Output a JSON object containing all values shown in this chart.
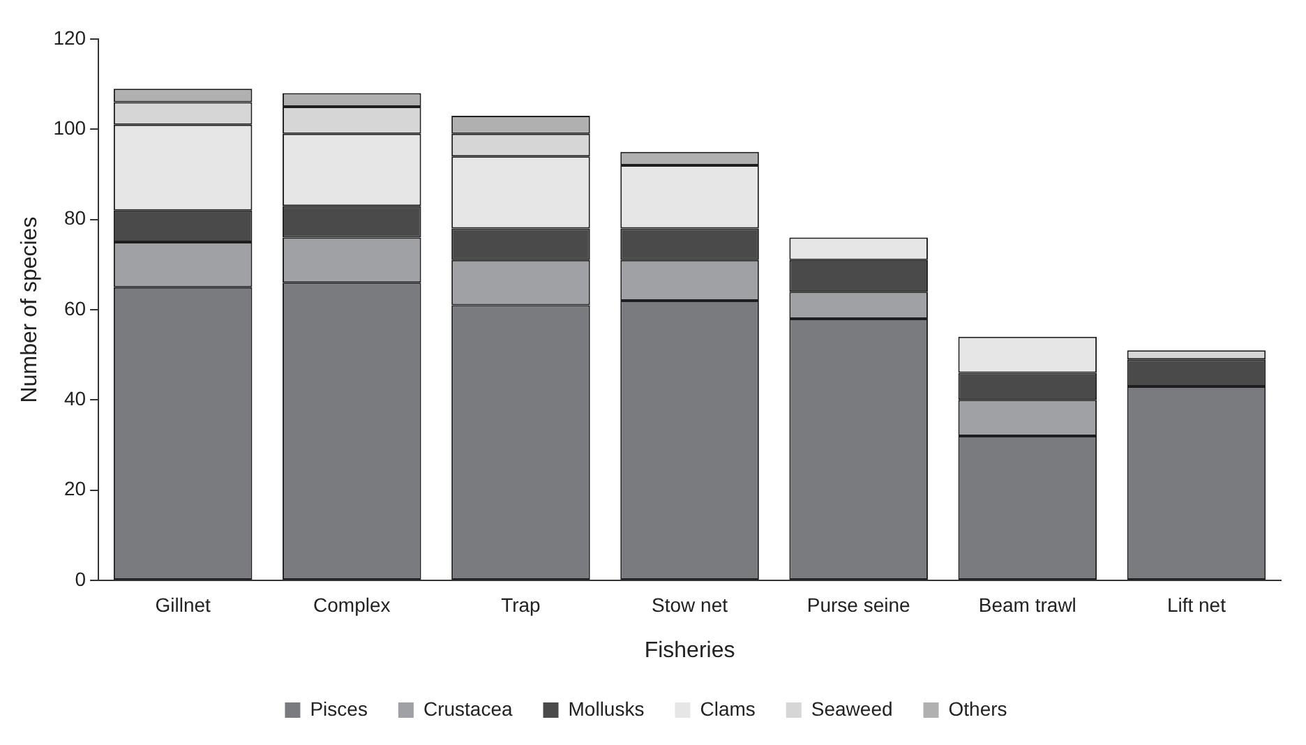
{
  "chart_data": {
    "type": "bar",
    "stacked": true,
    "xlabel": "Fisheries",
    "ylabel": "Number of species",
    "categories": [
      "Gillnet",
      "Complex",
      "Trap",
      "Stow net",
      "Purse seine",
      "Beam trawl",
      "Lift net"
    ],
    "series": [
      {
        "name": "Pisces",
        "color": "#7a7b7f",
        "values": [
          65,
          66,
          61,
          62,
          58,
          32,
          43
        ]
      },
      {
        "name": "Crustacea",
        "color": "#a0a1a5",
        "values": [
          10,
          10,
          10,
          9,
          6,
          8,
          0
        ]
      },
      {
        "name": "Mollusks",
        "color": "#4a4a4a",
        "values": [
          7,
          7,
          7,
          7,
          7,
          6,
          6
        ]
      },
      {
        "name": "Clams",
        "color": "#e6e6e6",
        "values": [
          19,
          16,
          16,
          14,
          5,
          8,
          0
        ]
      },
      {
        "name": "Seaweed",
        "color": "#d6d6d6",
        "values": [
          5,
          6,
          5,
          0,
          0,
          0,
          2
        ]
      },
      {
        "name": "Others",
        "color": "#b0b0b0",
        "values": [
          3,
          3,
          4,
          3,
          0,
          0,
          0
        ]
      }
    ],
    "ylim": [
      0,
      120
    ],
    "yticks": [
      0,
      20,
      40,
      60,
      80,
      100,
      120
    ],
    "grid": false,
    "legend": "bottom"
  }
}
